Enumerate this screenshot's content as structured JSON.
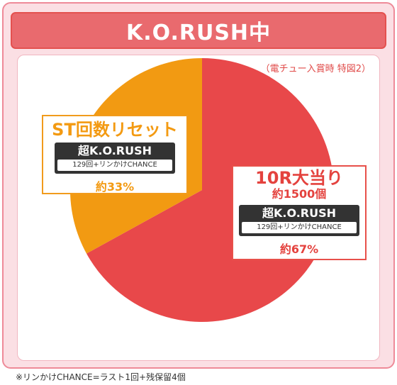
{
  "title": "K.O.RUSH中",
  "condition_note": "（電チュー入賞時 特図2）",
  "footnote": "※リンかけCHANCE=ラスト1回+残保留4個",
  "colors": {
    "st_slice": "#f29a12",
    "r10_slice": "#e8484a",
    "title_bg": "#e96a6e",
    "frame_bg": "#fbdfe4"
  },
  "callouts": {
    "st": {
      "title": "ST回数リセット",
      "badge": "超K.O.RUSH",
      "badge_note": "129回+リンかけCHANCE",
      "percent": "約33%"
    },
    "r10": {
      "title": "10R大当り",
      "payout": "約1500個",
      "badge": "超K.O.RUSH",
      "badge_note": "129回+リンかけCHANCE",
      "percent": "約67%"
    }
  },
  "chart_data": {
    "type": "pie",
    "title": "K.O.RUSH中",
    "slices": [
      {
        "label": "10R大当り",
        "value": 67,
        "color": "#e8484a"
      },
      {
        "label": "ST回数リセット",
        "value": 33,
        "color": "#f29a12"
      }
    ]
  }
}
